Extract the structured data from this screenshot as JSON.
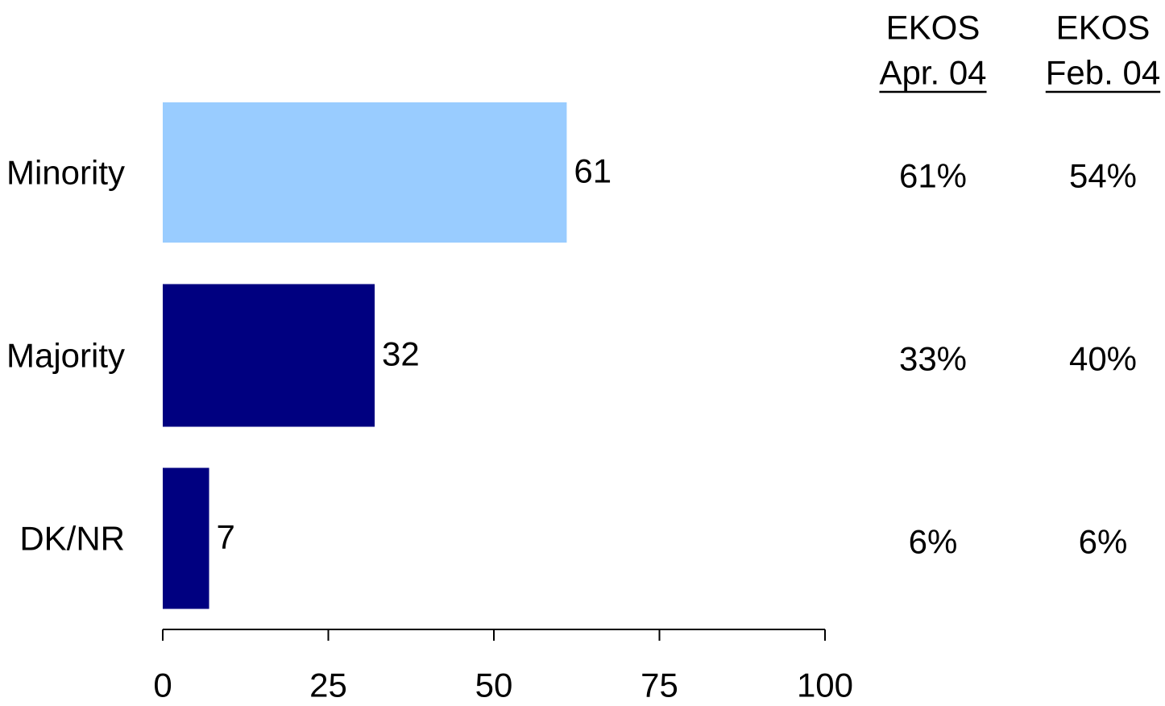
{
  "chart_data": {
    "type": "bar",
    "orientation": "horizontal",
    "categories": [
      "Minority",
      "Majority",
      "DK/NR"
    ],
    "values": [
      61,
      32,
      7
    ],
    "data_labels": [
      "61",
      "32",
      "7"
    ],
    "bar_colors": [
      "#99ccff",
      "#000080",
      "#000080"
    ],
    "xlim": [
      0,
      100
    ],
    "x_ticks": [
      0,
      25,
      50,
      75,
      100
    ],
    "x_tick_labels": [
      "0",
      "25",
      "50",
      "75",
      "100"
    ],
    "grid": false,
    "comparison_columns": [
      {
        "header_line1": "EKOS",
        "header_line2": "Apr. 04",
        "values": [
          "61%",
          "33%",
          "6%"
        ]
      },
      {
        "header_line1": "EKOS",
        "header_line2": "Feb. 04",
        "values": [
          "54%",
          "40%",
          "6%"
        ]
      }
    ]
  }
}
